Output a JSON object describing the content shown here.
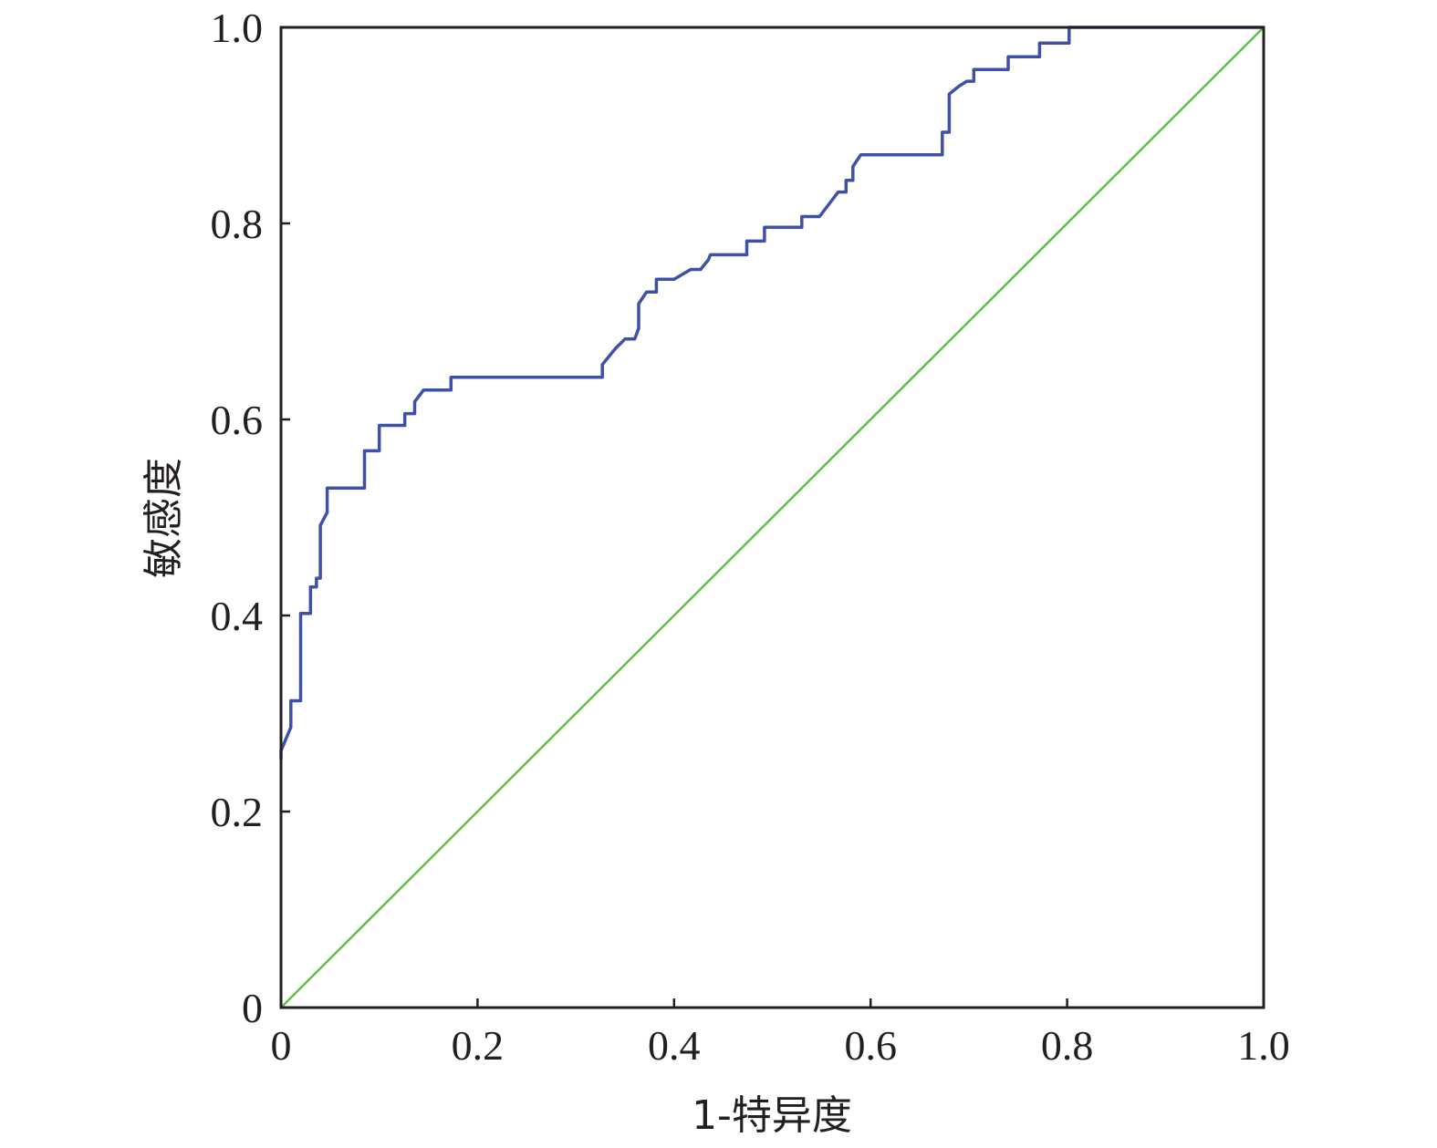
{
  "chart_data": {
    "type": "line",
    "title": "",
    "xlabel": "1-特异度",
    "ylabel": "敏感度",
    "xlim": [
      0,
      1.0
    ],
    "ylim": [
      0,
      1.0
    ],
    "grid": false,
    "x_ticks": [
      "0",
      "0.2",
      "0.4",
      "0.6",
      "0.8",
      "1.0"
    ],
    "y_ticks": [
      "0",
      "0.2",
      "0.4",
      "0.6",
      "0.8",
      "1.0"
    ],
    "series": [
      {
        "color": "#3f51a6",
        "points": [
          [
            0.0,
            0.253
          ],
          [
            0.0,
            0.262
          ],
          [
            0.01,
            0.286
          ],
          [
            0.01,
            0.313
          ],
          [
            0.02,
            0.313
          ],
          [
            0.02,
            0.402
          ],
          [
            0.03,
            0.402
          ],
          [
            0.03,
            0.429
          ],
          [
            0.036,
            0.429
          ],
          [
            0.036,
            0.438
          ],
          [
            0.04,
            0.438
          ],
          [
            0.04,
            0.492
          ],
          [
            0.047,
            0.505
          ],
          [
            0.047,
            0.53
          ],
          [
            0.085,
            0.53
          ],
          [
            0.085,
            0.568
          ],
          [
            0.1,
            0.568
          ],
          [
            0.1,
            0.594
          ],
          [
            0.126,
            0.594
          ],
          [
            0.126,
            0.606
          ],
          [
            0.136,
            0.606
          ],
          [
            0.136,
            0.618
          ],
          [
            0.145,
            0.63
          ],
          [
            0.173,
            0.63
          ],
          [
            0.173,
            0.643
          ],
          [
            0.327,
            0.643
          ],
          [
            0.327,
            0.656
          ],
          [
            0.34,
            0.672
          ],
          [
            0.35,
            0.682
          ],
          [
            0.36,
            0.682
          ],
          [
            0.364,
            0.693
          ],
          [
            0.364,
            0.718
          ],
          [
            0.372,
            0.73
          ],
          [
            0.382,
            0.73
          ],
          [
            0.382,
            0.743
          ],
          [
            0.4,
            0.743
          ],
          [
            0.417,
            0.753
          ],
          [
            0.427,
            0.753
          ],
          [
            0.435,
            0.763
          ],
          [
            0.437,
            0.768
          ],
          [
            0.474,
            0.768
          ],
          [
            0.474,
            0.782
          ],
          [
            0.492,
            0.782
          ],
          [
            0.492,
            0.796
          ],
          [
            0.53,
            0.796
          ],
          [
            0.53,
            0.807
          ],
          [
            0.548,
            0.807
          ],
          [
            0.567,
            0.832
          ],
          [
            0.575,
            0.832
          ],
          [
            0.575,
            0.844
          ],
          [
            0.582,
            0.844
          ],
          [
            0.582,
            0.858
          ],
          [
            0.59,
            0.87
          ],
          [
            0.673,
            0.87
          ],
          [
            0.673,
            0.893
          ],
          [
            0.68,
            0.893
          ],
          [
            0.68,
            0.932
          ],
          [
            0.69,
            0.94
          ],
          [
            0.698,
            0.945
          ],
          [
            0.705,
            0.945
          ],
          [
            0.705,
            0.957
          ],
          [
            0.74,
            0.957
          ],
          [
            0.74,
            0.97
          ],
          [
            0.772,
            0.97
          ],
          [
            0.772,
            0.984
          ],
          [
            0.802,
            0.984
          ],
          [
            0.802,
            1.0
          ],
          [
            1.0,
            1.0
          ]
        ]
      },
      {
        "color": "#5fbf4a",
        "points": [
          [
            0,
            0
          ],
          [
            1.0,
            1.0
          ]
        ]
      }
    ]
  }
}
